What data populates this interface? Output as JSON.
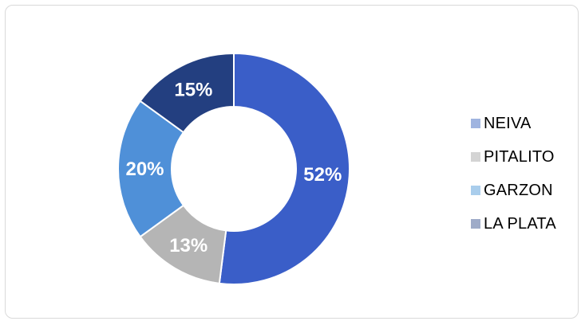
{
  "chart_data": {
    "type": "pie",
    "subtype": "donut",
    "categories": [
      "NEIVA",
      "PITALITO",
      "GARZON",
      "LA PLATA"
    ],
    "values": [
      52,
      13,
      20,
      15
    ],
    "value_labels": [
      "52%",
      "13%",
      "20%",
      "15%"
    ],
    "colors": [
      "#3a5ec8",
      "#b5b5b5",
      "#4f90d8",
      "#233f80"
    ],
    "legend_colors": [
      "#9fb4e0",
      "#d4d4d4",
      "#a9cdec",
      "#9eabc8"
    ],
    "legend_position": "right",
    "title": ""
  }
}
